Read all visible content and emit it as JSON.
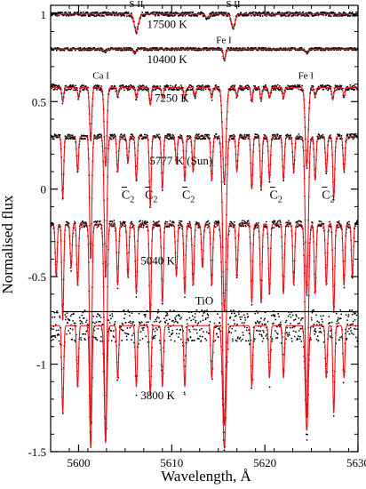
{
  "chart_data": {
    "type": "line",
    "title": "",
    "xlabel": "Wavelength, Å",
    "ylabel": "Normalised flux",
    "xlim": [
      5597,
      5630
    ],
    "ylim": [
      -1.5,
      1.05
    ],
    "x_ticks": [
      5600,
      5610,
      5620,
      5630
    ],
    "y_ticks": [
      -1.5,
      -1,
      -0.5,
      0,
      0.5,
      1
    ],
    "x_tick_labels": [
      "5600",
      "5610",
      "5620",
      "5630"
    ],
    "y_tick_labels": [
      "-1.5",
      "-1",
      "-0.5",
      "0",
      "0.5",
      "1"
    ],
    "grid": false,
    "legend": false,
    "colors": {
      "observed": "#000000",
      "model": "#e8141a"
    },
    "series_styles": {
      "observed": "black dots",
      "model": "red line"
    },
    "spectra": [
      {
        "label": "17500 K",
        "continuum": 1.0,
        "noise": 0.012,
        "lines": [
          {
            "center": 5606.2,
            "depth": 0.1,
            "width": 0.22
          },
          {
            "center": 5616.6,
            "depth": 0.08,
            "width": 0.2
          },
          {
            "center": 5613.8,
            "depth": 0.02,
            "width": 0.2
          }
        ]
      },
      {
        "label": "10400 K",
        "continuum": 0.8,
        "noise": 0.008,
        "lines": [
          {
            "center": 5615.65,
            "depth": 0.06,
            "width": 0.12
          },
          {
            "center": 5606.0,
            "depth": 0.02,
            "width": 0.15
          },
          {
            "center": 5624.5,
            "depth": 0.02,
            "width": 0.15
          },
          {
            "center": 5602.8,
            "depth": 0.015,
            "width": 0.15
          }
        ]
      },
      {
        "label": "7250 K",
        "continuum": 0.58,
        "noise": 0.015,
        "lines": [
          {
            "center": 5601.3,
            "depth": 0.3,
            "width": 0.12
          },
          {
            "center": 5602.9,
            "depth": 0.45,
            "width": 0.14
          },
          {
            "center": 5615.65,
            "depth": 0.55,
            "width": 0.18
          },
          {
            "center": 5624.5,
            "depth": 0.45,
            "width": 0.16
          },
          {
            "center": 5598.3,
            "depth": 0.08,
            "width": 0.1
          },
          {
            "center": 5600.0,
            "depth": 0.06,
            "width": 0.1
          },
          {
            "center": 5604.2,
            "depth": 0.05,
            "width": 0.1
          },
          {
            "center": 5606.2,
            "depth": 0.06,
            "width": 0.1
          },
          {
            "center": 5607.7,
            "depth": 0.1,
            "width": 0.1
          },
          {
            "center": 5609.0,
            "depth": 0.06,
            "width": 0.1
          },
          {
            "center": 5611.4,
            "depth": 0.07,
            "width": 0.1
          },
          {
            "center": 5612.5,
            "depth": 0.05,
            "width": 0.1
          },
          {
            "center": 5614.3,
            "depth": 0.06,
            "width": 0.1
          },
          {
            "center": 5617.0,
            "depth": 0.05,
            "width": 0.1
          },
          {
            "center": 5618.6,
            "depth": 0.08,
            "width": 0.1
          },
          {
            "center": 5619.6,
            "depth": 0.07,
            "width": 0.1
          },
          {
            "center": 5620.5,
            "depth": 0.06,
            "width": 0.1
          },
          {
            "center": 5622.0,
            "depth": 0.06,
            "width": 0.1
          },
          {
            "center": 5625.4,
            "depth": 0.05,
            "width": 0.1
          },
          {
            "center": 5627.3,
            "depth": 0.07,
            "width": 0.1
          },
          {
            "center": 5628.5,
            "depth": 0.05,
            "width": 0.1
          }
        ]
      },
      {
        "label": "5777 K (Sun)",
        "continuum": 0.3,
        "noise": 0.015,
        "lines": [
          {
            "center": 5598.3,
            "depth": 0.35,
            "width": 0.1
          },
          {
            "center": 5599.9,
            "depth": 0.2,
            "width": 0.1
          },
          {
            "center": 5601.3,
            "depth": 0.7,
            "width": 0.12
          },
          {
            "center": 5602.9,
            "depth": 0.8,
            "width": 0.14
          },
          {
            "center": 5604.2,
            "depth": 0.2,
            "width": 0.1
          },
          {
            "center": 5605.3,
            "depth": 0.15,
            "width": 0.1
          },
          {
            "center": 5606.2,
            "depth": 0.25,
            "width": 0.1
          },
          {
            "center": 5607.7,
            "depth": 0.4,
            "width": 0.1
          },
          {
            "center": 5609.0,
            "depth": 0.3,
            "width": 0.1
          },
          {
            "center": 5610.5,
            "depth": 0.15,
            "width": 0.1
          },
          {
            "center": 5611.4,
            "depth": 0.25,
            "width": 0.1
          },
          {
            "center": 5612.3,
            "depth": 0.2,
            "width": 0.1
          },
          {
            "center": 5614.3,
            "depth": 0.25,
            "width": 0.1
          },
          {
            "center": 5615.65,
            "depth": 1.0,
            "width": 0.18
          },
          {
            "center": 5617.0,
            "depth": 0.2,
            "width": 0.1
          },
          {
            "center": 5618.6,
            "depth": 0.3,
            "width": 0.1
          },
          {
            "center": 5619.6,
            "depth": 0.3,
            "width": 0.1
          },
          {
            "center": 5620.5,
            "depth": 0.25,
            "width": 0.1
          },
          {
            "center": 5622.0,
            "depth": 0.25,
            "width": 0.1
          },
          {
            "center": 5623.1,
            "depth": 0.2,
            "width": 0.1
          },
          {
            "center": 5624.5,
            "depth": 0.9,
            "width": 0.16
          },
          {
            "center": 5625.4,
            "depth": 0.25,
            "width": 0.1
          },
          {
            "center": 5626.6,
            "depth": 0.2,
            "width": 0.1
          },
          {
            "center": 5627.4,
            "depth": 0.35,
            "width": 0.1
          },
          {
            "center": 5628.5,
            "depth": 0.2,
            "width": 0.1
          }
        ]
      },
      {
        "label": "5040 K",
        "continuum": -0.2,
        "noise": 0.02,
        "lines": [
          {
            "center": 5597.6,
            "depth": 0.3,
            "width": 0.1
          },
          {
            "center": 5598.3,
            "depth": 0.55,
            "width": 0.1
          },
          {
            "center": 5599.2,
            "depth": 0.25,
            "width": 0.1
          },
          {
            "center": 5599.9,
            "depth": 0.35,
            "width": 0.1
          },
          {
            "center": 5601.3,
            "depth": 1.15,
            "width": 0.12
          },
          {
            "center": 5602.9,
            "depth": 1.25,
            "width": 0.14
          },
          {
            "center": 5604.2,
            "depth": 0.35,
            "width": 0.1
          },
          {
            "center": 5605.3,
            "depth": 0.3,
            "width": 0.1
          },
          {
            "center": 5606.2,
            "depth": 0.4,
            "width": 0.1
          },
          {
            "center": 5607.7,
            "depth": 0.55,
            "width": 0.1
          },
          {
            "center": 5609.0,
            "depth": 0.45,
            "width": 0.1
          },
          {
            "center": 5610.5,
            "depth": 0.3,
            "width": 0.1
          },
          {
            "center": 5611.4,
            "depth": 0.4,
            "width": 0.1
          },
          {
            "center": 5612.3,
            "depth": 0.35,
            "width": 0.1
          },
          {
            "center": 5613.3,
            "depth": 0.25,
            "width": 0.1
          },
          {
            "center": 5614.3,
            "depth": 0.35,
            "width": 0.1
          },
          {
            "center": 5615.65,
            "depth": 1.15,
            "width": 0.18
          },
          {
            "center": 5617.0,
            "depth": 0.3,
            "width": 0.1
          },
          {
            "center": 5618.6,
            "depth": 0.45,
            "width": 0.1
          },
          {
            "center": 5619.6,
            "depth": 0.45,
            "width": 0.1
          },
          {
            "center": 5620.5,
            "depth": 0.4,
            "width": 0.1
          },
          {
            "center": 5622.0,
            "depth": 0.4,
            "width": 0.1
          },
          {
            "center": 5623.1,
            "depth": 0.35,
            "width": 0.1
          },
          {
            "center": 5624.5,
            "depth": 1.1,
            "width": 0.16
          },
          {
            "center": 5625.4,
            "depth": 0.4,
            "width": 0.1
          },
          {
            "center": 5626.6,
            "depth": 0.35,
            "width": 0.1
          },
          {
            "center": 5627.4,
            "depth": 0.5,
            "width": 0.1
          },
          {
            "center": 5628.5,
            "depth": 0.35,
            "width": 0.1
          },
          {
            "center": 5629.4,
            "depth": 0.3,
            "width": 0.1
          }
        ]
      },
      {
        "label": "3800 K",
        "continuum": -0.78,
        "noise": 0.09,
        "lines": [
          {
            "center": 5598.3,
            "depth": 0.5,
            "width": 0.1
          },
          {
            "center": 5599.9,
            "depth": 0.35,
            "width": 0.1
          },
          {
            "center": 5601.3,
            "depth": 0.7,
            "width": 0.12
          },
          {
            "center": 5602.9,
            "depth": 0.65,
            "width": 0.14
          },
          {
            "center": 5604.2,
            "depth": 0.3,
            "width": 0.1
          },
          {
            "center": 5606.2,
            "depth": 0.35,
            "width": 0.1
          },
          {
            "center": 5607.7,
            "depth": 0.4,
            "width": 0.1
          },
          {
            "center": 5609.0,
            "depth": 0.35,
            "width": 0.1
          },
          {
            "center": 5611.4,
            "depth": 0.35,
            "width": 0.1
          },
          {
            "center": 5614.3,
            "depth": 0.3,
            "width": 0.1
          },
          {
            "center": 5615.65,
            "depth": 0.7,
            "width": 0.18
          },
          {
            "center": 5618.6,
            "depth": 0.35,
            "width": 0.1
          },
          {
            "center": 5620.5,
            "depth": 0.3,
            "width": 0.1
          },
          {
            "center": 5622.0,
            "depth": 0.3,
            "width": 0.1
          },
          {
            "center": 5624.5,
            "depth": 0.6,
            "width": 0.16
          },
          {
            "center": 5626.6,
            "depth": 0.3,
            "width": 0.1
          },
          {
            "center": 5627.4,
            "depth": 0.5,
            "width": 0.1
          },
          {
            "center": 5628.5,
            "depth": 0.3,
            "width": 0.1
          }
        ]
      }
    ],
    "line_labels": [
      {
        "text": "S II",
        "x": 5606.2,
        "y": 1.04
      },
      {
        "text": "S II",
        "x": 5616.6,
        "y": 1.04
      },
      {
        "text": "Fe I",
        "x": 5615.6,
        "y": 0.835
      },
      {
        "text": "Ca I",
        "x": 5602.4,
        "y": 0.63
      },
      {
        "text": "Fe I",
        "x": 5624.4,
        "y": 0.63
      }
    ],
    "c2_labels": [
      {
        "text": "C",
        "subscript": "2",
        "x": 5605.3,
        "y": -0.055
      },
      {
        "text": "C",
        "subscript": "2",
        "x": 5607.8,
        "y": -0.055
      },
      {
        "text": "C",
        "subscript": "2",
        "x": 5611.8,
        "y": -0.055
      },
      {
        "text": "C",
        "subscript": "2",
        "x": 5621.2,
        "y": -0.055
      },
      {
        "text": "C",
        "subscript": "2",
        "x": 5626.8,
        "y": -0.055
      }
    ],
    "spectrum_labels": [
      {
        "text": "17500 K",
        "x": 5609.5,
        "y": 0.92
      },
      {
        "text": "10400 K",
        "x": 5609.5,
        "y": 0.72
      },
      {
        "text": "7250 K",
        "x": 5610.0,
        "y": 0.5
      },
      {
        "text": "5777 K (Sun)",
        "x": 5611.0,
        "y": 0.14
      },
      {
        "text": "5040 K",
        "x": 5608.5,
        "y": -0.43
      },
      {
        "text": "3800 K",
        "x": 5608.5,
        "y": -1.2
      }
    ],
    "annotation": {
      "text": "TiO",
      "x": 5613.5,
      "y": -0.66
    },
    "hline": {
      "y": -0.7,
      "x_from": 5598.3,
      "x_to": 5630
    }
  }
}
